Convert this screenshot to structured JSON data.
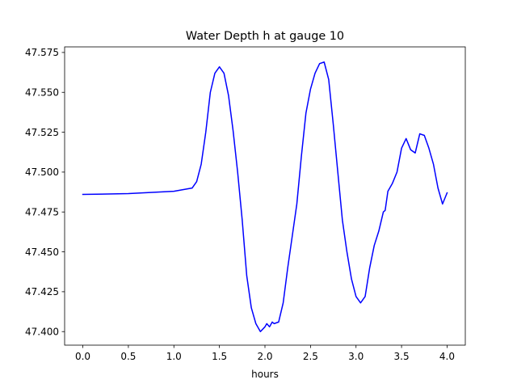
{
  "chart_data": {
    "type": "line",
    "title": "Water Depth h at gauge 10",
    "xlabel": "hours",
    "ylabel": "",
    "xlim": [
      -0.2,
      4.2
    ],
    "ylim": [
      47.3915,
      47.5785
    ],
    "xticks": [
      0.0,
      0.5,
      1.0,
      1.5,
      2.0,
      2.5,
      3.0,
      3.5,
      4.0
    ],
    "xtick_labels": [
      "0.0",
      "0.5",
      "1.0",
      "1.5",
      "2.0",
      "2.5",
      "3.0",
      "3.5",
      "4.0"
    ],
    "yticks": [
      47.4,
      47.425,
      47.45,
      47.475,
      47.5,
      47.525,
      47.55,
      47.575
    ],
    "ytick_labels": [
      "47.400",
      "47.425",
      "47.450",
      "47.475",
      "47.500",
      "47.525",
      "47.550",
      "47.575"
    ],
    "grid": false,
    "series": [
      {
        "color": "#0000ff",
        "x": [
          0.0,
          0.5,
          1.0,
          1.2,
          1.25,
          1.3,
          1.35,
          1.4,
          1.45,
          1.5,
          1.55,
          1.6,
          1.65,
          1.7,
          1.75,
          1.8,
          1.85,
          1.9,
          1.95,
          2.0,
          2.02,
          2.05,
          2.08,
          2.1,
          2.15,
          2.2,
          2.25,
          2.3,
          2.35,
          2.4,
          2.45,
          2.5,
          2.55,
          2.6,
          2.65,
          2.7,
          2.75,
          2.8,
          2.85,
          2.9,
          2.95,
          3.0,
          3.05,
          3.1,
          3.15,
          3.2,
          3.25,
          3.3,
          3.32,
          3.35,
          3.4,
          3.45,
          3.5,
          3.55,
          3.6,
          3.65,
          3.7,
          3.75,
          3.8,
          3.85,
          3.9,
          3.95,
          4.0
        ],
        "y": [
          47.486,
          47.4865,
          47.488,
          47.49,
          47.494,
          47.505,
          47.525,
          47.55,
          47.562,
          47.566,
          47.562,
          47.548,
          47.526,
          47.5,
          47.47,
          47.435,
          47.415,
          47.405,
          47.4,
          47.403,
          47.405,
          47.403,
          47.406,
          47.405,
          47.406,
          47.418,
          47.44,
          47.46,
          47.48,
          47.51,
          47.537,
          47.552,
          47.562,
          47.568,
          47.569,
          47.558,
          47.53,
          47.5,
          47.47,
          47.45,
          47.433,
          47.422,
          47.418,
          47.422,
          47.44,
          47.454,
          47.463,
          47.475,
          47.476,
          47.488,
          47.493,
          47.5,
          47.515,
          47.521,
          47.514,
          47.512,
          47.524,
          47.523,
          47.515,
          47.505,
          47.49,
          47.48,
          47.487
        ]
      }
    ]
  }
}
